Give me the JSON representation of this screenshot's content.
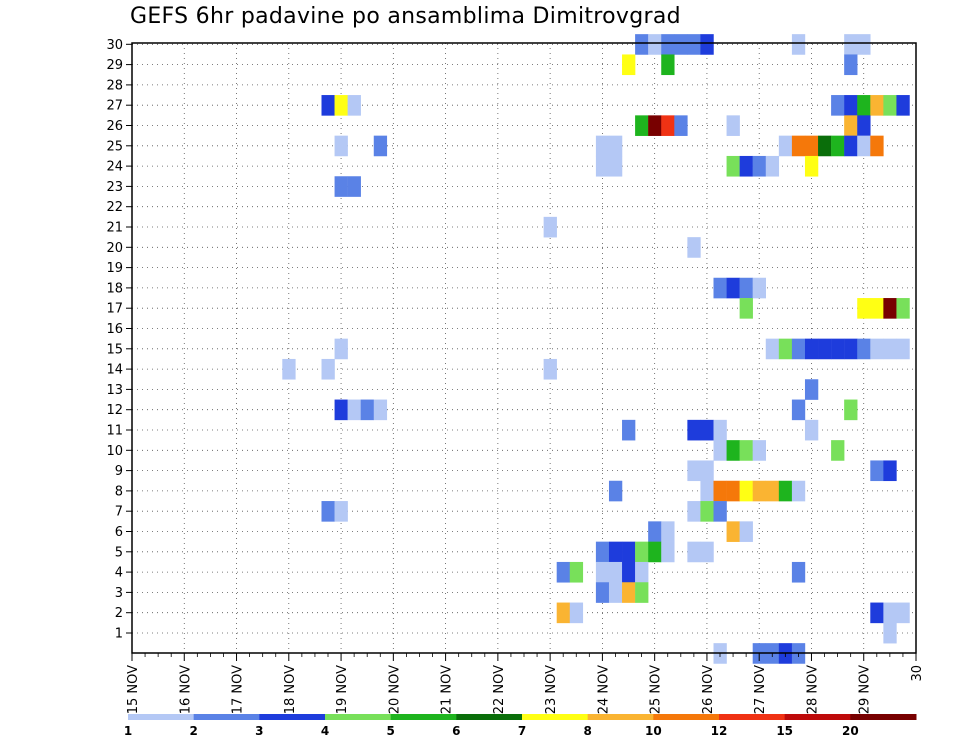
{
  "chart_data": {
    "type": "heatmap",
    "title": "GEFS 6hr padavine po ansamblima Dimitrovgrad",
    "xlabel": "",
    "ylabel": "",
    "members": [
      1,
      2,
      3,
      4,
      5,
      6,
      7,
      8,
      9,
      10,
      11,
      12,
      13,
      14,
      15,
      16,
      17,
      18,
      19,
      20,
      21,
      22,
      23,
      24,
      25,
      26,
      27,
      28,
      29,
      30
    ],
    "x_tick_labels": [
      "15 NOV",
      "16 NOV",
      "17 NOV",
      "18 NOV",
      "19 NOV",
      "20 NOV",
      "21 NOV",
      "22 NOV",
      "23 NOV",
      "24 NOV",
      "25 NOV",
      "26 NOV",
      "27 NOV",
      "28 NOV",
      "29 NOV",
      "30"
    ],
    "x_range_days": [
      15,
      30
    ],
    "steps_per_day": 4,
    "grid": true,
    "legend_placement": "bottom",
    "color_levels": [
      {
        "label": "1",
        "color": "#b4c8f5"
      },
      {
        "label": "2",
        "color": "#5a82e6"
      },
      {
        "label": "3",
        "color": "#1e3cdc"
      },
      {
        "label": "4",
        "color": "#78e05a"
      },
      {
        "label": "5",
        "color": "#1eb41e"
      },
      {
        "label": "6",
        "color": "#0a6e0a"
      },
      {
        "label": "7",
        "color": "#ffff14"
      },
      {
        "label": "8",
        "color": "#fab432"
      },
      {
        "label": "10",
        "color": "#f5780a"
      },
      {
        "label": "12",
        "color": "#f03214"
      },
      {
        "label": "15",
        "color": "#be0a0a"
      },
      {
        "label": "20",
        "color": "#780000"
      }
    ],
    "cells": [
      {
        "member": 30,
        "day": 24.75,
        "level": 1
      },
      {
        "member": 30,
        "day": 25.0,
        "level": 0
      },
      {
        "member": 30,
        "day": 25.25,
        "level": 1
      },
      {
        "member": 30,
        "day": 25.5,
        "level": 1
      },
      {
        "member": 30,
        "day": 25.75,
        "level": 1
      },
      {
        "member": 30,
        "day": 26.0,
        "level": 2
      },
      {
        "member": 30,
        "day": 27.75,
        "level": 0
      },
      {
        "member": 30,
        "day": 28.75,
        "level": 0
      },
      {
        "member": 30,
        "day": 29.0,
        "level": 0
      },
      {
        "member": 29,
        "day": 24.5,
        "level": 6
      },
      {
        "member": 29,
        "day": 25.25,
        "level": 4
      },
      {
        "member": 29,
        "day": 28.75,
        "level": 1
      },
      {
        "member": 27,
        "day": 18.75,
        "level": 2
      },
      {
        "member": 27,
        "day": 19.0,
        "level": 6
      },
      {
        "member": 27,
        "day": 19.25,
        "level": 0
      },
      {
        "member": 27,
        "day": 28.5,
        "level": 1
      },
      {
        "member": 27,
        "day": 28.75,
        "level": 2
      },
      {
        "member": 27,
        "day": 29.0,
        "level": 4
      },
      {
        "member": 27,
        "day": 29.25,
        "level": 7
      },
      {
        "member": 27,
        "day": 29.5,
        "level": 3
      },
      {
        "member": 27,
        "day": 29.75,
        "level": 2
      },
      {
        "member": 26,
        "day": 24.75,
        "level": 4
      },
      {
        "member": 26,
        "day": 25.0,
        "level": 11
      },
      {
        "member": 26,
        "day": 25.25,
        "level": 9
      },
      {
        "member": 26,
        "day": 25.5,
        "level": 1
      },
      {
        "member": 26,
        "day": 26.5,
        "level": 0
      },
      {
        "member": 26,
        "day": 28.75,
        "level": 7
      },
      {
        "member": 26,
        "day": 29.0,
        "level": 2
      },
      {
        "member": 25,
        "day": 19.0,
        "level": 0
      },
      {
        "member": 25,
        "day": 19.75,
        "level": 1
      },
      {
        "member": 25,
        "day": 24.0,
        "level": 0
      },
      {
        "member": 25,
        "day": 24.25,
        "level": 0
      },
      {
        "member": 25,
        "day": 27.5,
        "level": 0
      },
      {
        "member": 25,
        "day": 27.75,
        "level": 8
      },
      {
        "member": 25,
        "day": 28.0,
        "level": 8
      },
      {
        "member": 25,
        "day": 28.25,
        "level": 5
      },
      {
        "member": 25,
        "day": 28.5,
        "level": 4
      },
      {
        "member": 25,
        "day": 28.75,
        "level": 2
      },
      {
        "member": 25,
        "day": 29.0,
        "level": 0
      },
      {
        "member": 25,
        "day": 29.25,
        "level": 8
      },
      {
        "member": 24,
        "day": 24.0,
        "level": 0
      },
      {
        "member": 24,
        "day": 24.25,
        "level": 0
      },
      {
        "member": 24,
        "day": 26.5,
        "level": 3
      },
      {
        "member": 24,
        "day": 26.75,
        "level": 2
      },
      {
        "member": 24,
        "day": 27.0,
        "level": 1
      },
      {
        "member": 24,
        "day": 27.25,
        "level": 0
      },
      {
        "member": 24,
        "day": 28.0,
        "level": 6
      },
      {
        "member": 23,
        "day": 19.0,
        "level": 1
      },
      {
        "member": 23,
        "day": 19.25,
        "level": 1
      },
      {
        "member": 21,
        "day": 23.0,
        "level": 0
      },
      {
        "member": 20,
        "day": 25.75,
        "level": 0
      },
      {
        "member": 18,
        "day": 26.25,
        "level": 1
      },
      {
        "member": 18,
        "day": 26.5,
        "level": 2
      },
      {
        "member": 18,
        "day": 26.75,
        "level": 1
      },
      {
        "member": 18,
        "day": 27.0,
        "level": 0
      },
      {
        "member": 17,
        "day": 26.75,
        "level": 3
      },
      {
        "member": 17,
        "day": 29.0,
        "level": 6
      },
      {
        "member": 17,
        "day": 29.25,
        "level": 6
      },
      {
        "member": 17,
        "day": 29.5,
        "level": 11
      },
      {
        "member": 17,
        "day": 29.75,
        "level": 3
      },
      {
        "member": 15,
        "day": 19.0,
        "level": 0
      },
      {
        "member": 15,
        "day": 27.25,
        "level": 0
      },
      {
        "member": 15,
        "day": 27.5,
        "level": 3
      },
      {
        "member": 15,
        "day": 27.75,
        "level": 1
      },
      {
        "member": 15,
        "day": 28.0,
        "level": 2
      },
      {
        "member": 15,
        "day": 28.25,
        "level": 2
      },
      {
        "member": 15,
        "day": 28.5,
        "level": 2
      },
      {
        "member": 15,
        "day": 28.75,
        "level": 2
      },
      {
        "member": 15,
        "day": 29.0,
        "level": 1
      },
      {
        "member": 15,
        "day": 29.25,
        "level": 0
      },
      {
        "member": 15,
        "day": 29.5,
        "level": 0
      },
      {
        "member": 15,
        "day": 29.75,
        "level": 0
      },
      {
        "member": 14,
        "day": 18.0,
        "level": 0
      },
      {
        "member": 14,
        "day": 18.75,
        "level": 0
      },
      {
        "member": 14,
        "day": 23.0,
        "level": 0
      },
      {
        "member": 13,
        "day": 28.0,
        "level": 1
      },
      {
        "member": 12,
        "day": 19.0,
        "level": 2
      },
      {
        "member": 12,
        "day": 19.25,
        "level": 0
      },
      {
        "member": 12,
        "day": 19.5,
        "level": 1
      },
      {
        "member": 12,
        "day": 19.75,
        "level": 0
      },
      {
        "member": 12,
        "day": 27.75,
        "level": 1
      },
      {
        "member": 12,
        "day": 28.75,
        "level": 3
      },
      {
        "member": 11,
        "day": 24.5,
        "level": 1
      },
      {
        "member": 11,
        "day": 25.75,
        "level": 2
      },
      {
        "member": 11,
        "day": 26.0,
        "level": 2
      },
      {
        "member": 11,
        "day": 26.25,
        "level": 0
      },
      {
        "member": 11,
        "day": 28.0,
        "level": 0
      },
      {
        "member": 10,
        "day": 26.25,
        "level": 0
      },
      {
        "member": 10,
        "day": 26.5,
        "level": 4
      },
      {
        "member": 10,
        "day": 26.75,
        "level": 3
      },
      {
        "member": 10,
        "day": 27.0,
        "level": 0
      },
      {
        "member": 10,
        "day": 28.5,
        "level": 3
      },
      {
        "member": 9,
        "day": 25.75,
        "level": 0
      },
      {
        "member": 9,
        "day": 26.0,
        "level": 0
      },
      {
        "member": 9,
        "day": 29.25,
        "level": 1
      },
      {
        "member": 9,
        "day": 29.5,
        "level": 2
      },
      {
        "member": 8,
        "day": 24.25,
        "level": 1
      },
      {
        "member": 8,
        "day": 26.0,
        "level": 0
      },
      {
        "member": 8,
        "day": 26.25,
        "level": 8
      },
      {
        "member": 8,
        "day": 26.5,
        "level": 8
      },
      {
        "member": 8,
        "day": 26.75,
        "level": 6
      },
      {
        "member": 8,
        "day": 27.0,
        "level": 7
      },
      {
        "member": 8,
        "day": 27.25,
        "level": 7
      },
      {
        "member": 8,
        "day": 27.5,
        "level": 4
      },
      {
        "member": 8,
        "day": 27.75,
        "level": 0
      },
      {
        "member": 7,
        "day": 18.75,
        "level": 1
      },
      {
        "member": 7,
        "day": 19.0,
        "level": 0
      },
      {
        "member": 7,
        "day": 25.75,
        "level": 0
      },
      {
        "member": 7,
        "day": 26.0,
        "level": 3
      },
      {
        "member": 7,
        "day": 26.25,
        "level": 1
      },
      {
        "member": 6,
        "day": 25.0,
        "level": 1
      },
      {
        "member": 6,
        "day": 25.25,
        "level": 0
      },
      {
        "member": 6,
        "day": 26.5,
        "level": 7
      },
      {
        "member": 6,
        "day": 26.75,
        "level": 0
      },
      {
        "member": 5,
        "day": 24.0,
        "level": 1
      },
      {
        "member": 5,
        "day": 24.25,
        "level": 2
      },
      {
        "member": 5,
        "day": 24.5,
        "level": 2
      },
      {
        "member": 5,
        "day": 24.75,
        "level": 3
      },
      {
        "member": 5,
        "day": 25.0,
        "level": 4
      },
      {
        "member": 5,
        "day": 25.25,
        "level": 0
      },
      {
        "member": 5,
        "day": 25.75,
        "level": 0
      },
      {
        "member": 5,
        "day": 26.0,
        "level": 0
      },
      {
        "member": 4,
        "day": 23.25,
        "level": 1
      },
      {
        "member": 4,
        "day": 23.5,
        "level": 3
      },
      {
        "member": 4,
        "day": 24.0,
        "level": 0
      },
      {
        "member": 4,
        "day": 24.25,
        "level": 0
      },
      {
        "member": 4,
        "day": 24.5,
        "level": 2
      },
      {
        "member": 4,
        "day": 24.75,
        "level": 0
      },
      {
        "member": 4,
        "day": 27.75,
        "level": 1
      },
      {
        "member": 3,
        "day": 24.0,
        "level": 1
      },
      {
        "member": 3,
        "day": 24.25,
        "level": 0
      },
      {
        "member": 3,
        "day": 24.5,
        "level": 7
      },
      {
        "member": 3,
        "day": 24.75,
        "level": 3
      },
      {
        "member": 2,
        "day": 23.25,
        "level": 7
      },
      {
        "member": 2,
        "day": 23.5,
        "level": 0
      },
      {
        "member": 2,
        "day": 29.25,
        "level": 2
      },
      {
        "member": 2,
        "day": 29.5,
        "level": 0
      },
      {
        "member": 2,
        "day": 29.75,
        "level": 0
      },
      {
        "member": 1,
        "day": 29.5,
        "level": 0
      },
      {
        "member": 0,
        "day": 26.25,
        "level": 0
      },
      {
        "member": 0,
        "day": 27.0,
        "level": 1
      },
      {
        "member": 0,
        "day": 27.25,
        "level": 1
      },
      {
        "member": 0,
        "day": 27.5,
        "level": 2
      },
      {
        "member": 0,
        "day": 27.75,
        "level": 1
      }
    ]
  }
}
